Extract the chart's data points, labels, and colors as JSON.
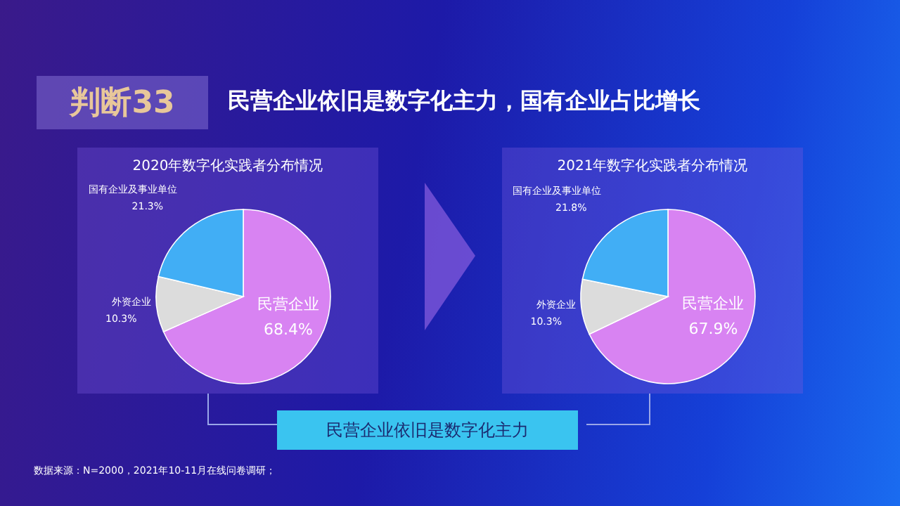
{
  "chart_data": [
    {
      "type": "pie",
      "title": "2020年数字化实践者分布情况",
      "categories": [
        "民营企业",
        "外资企业",
        "国有企业及事业单位"
      ],
      "values": [
        68.4,
        10.3,
        21.3
      ],
      "value_labels": [
        "68.4%",
        "10.3%",
        "21.3%"
      ],
      "colors": [
        "#d883f2",
        "#dcdcdc",
        "#41aef5"
      ],
      "legend": false,
      "annotations": [
        "判断33",
        "民营企业依旧是数字化主力，国有企业占比增长",
        "民营企业依旧是数字化主力",
        "数据来源：N=2000，2021年10-11月在线问卷调研；"
      ]
    },
    {
      "type": "pie",
      "title": "2021年数字化实践者分布情况",
      "categories": [
        "民营企业",
        "外资企业",
        "国有企业及事业单位"
      ],
      "values": [
        67.9,
        10.3,
        21.8
      ],
      "value_labels": [
        "67.9%",
        "10.3%",
        "21.8%"
      ],
      "colors": [
        "#d883f2",
        "#dcdcdc",
        "#41aef5"
      ],
      "legend": false
    }
  ]
}
